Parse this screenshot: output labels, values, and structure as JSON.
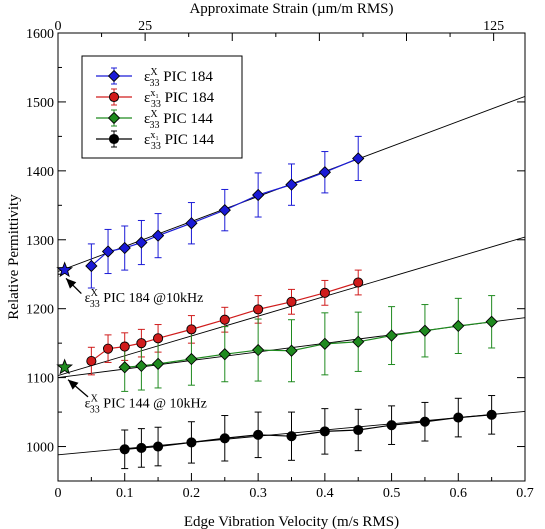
{
  "chart_data": {
    "type": "scatter",
    "xlabel": "Edge Vibration Velocity (m/s RMS)",
    "ylabel": "Relative Permittivity",
    "top_xlabel": "Approximate Strain (µm/m RMS)",
    "xlim": [
      0,
      0.7
    ],
    "ylim": [
      950,
      1600
    ],
    "top_xlim": [
      0,
      134
    ],
    "x_ticks": [
      0,
      0.1,
      0.2,
      0.3,
      0.4,
      0.5,
      0.6,
      0.7
    ],
    "x_tick_labels": [
      "0",
      "0.1",
      "0.2",
      "0.3",
      "0.4",
      "0.5",
      "0.6",
      "0.7"
    ],
    "y_ticks": [
      1000,
      1100,
      1200,
      1300,
      1400,
      1500,
      1600
    ],
    "y_tick_labels": [
      "1000",
      "1100",
      "1200",
      "1300",
      "1400",
      "1500",
      "1600"
    ],
    "top_ticks": [
      0,
      25,
      125
    ],
    "top_tick_labels": [
      "0",
      "25",
      "125"
    ],
    "grid": false,
    "legend_position": "top-left",
    "series": [
      {
        "name_base": "ε",
        "name_sub": "33",
        "name_sup": "X",
        "name_suffix": " PIC 184",
        "color": "#1a1ad6",
        "marker": "diamond",
        "x": [
          0.05,
          0.075,
          0.1,
          0.125,
          0.15,
          0.2,
          0.25,
          0.3,
          0.35,
          0.4,
          0.45
        ],
        "y": [
          1262,
          1283,
          1288,
          1296,
          1306,
          1324,
          1343,
          1365,
          1380,
          1398,
          1418
        ],
        "err": [
          32,
          32,
          32,
          32,
          32,
          30,
          30,
          32,
          30,
          30,
          32
        ],
        "fit": [
          [
            0,
            1254
          ],
          [
            0.7,
            1508
          ]
        ]
      },
      {
        "name_base": "ε",
        "name_sub": "33",
        "name_sup": "x₁",
        "name_suffix": " PIC 184",
        "color": "#d01c1c",
        "marker": "circle",
        "x": [
          0.05,
          0.075,
          0.1,
          0.125,
          0.15,
          0.2,
          0.25,
          0.3,
          0.35,
          0.4,
          0.45
        ],
        "y": [
          1124,
          1142,
          1145,
          1150,
          1157,
          1170,
          1184,
          1199,
          1210,
          1223,
          1238
        ],
        "err": [
          20,
          20,
          20,
          20,
          20,
          20,
          18,
          20,
          18,
          18,
          18
        ],
        "fit": [
          [
            0,
            1103
          ],
          [
            0.7,
            1304
          ]
        ]
      },
      {
        "name_base": "ε",
        "name_sub": "33",
        "name_sup": "X",
        "name_suffix": " PIC 144",
        "color": "#1f8a1f",
        "marker": "diamond",
        "x": [
          0.1,
          0.125,
          0.15,
          0.2,
          0.25,
          0.3,
          0.35,
          0.4,
          0.45,
          0.5,
          0.55,
          0.6,
          0.65
        ],
        "y": [
          1115,
          1117,
          1120,
          1127,
          1134,
          1140,
          1139,
          1149,
          1152,
          1161,
          1168,
          1175,
          1181
        ],
        "err": [
          35,
          35,
          35,
          38,
          40,
          45,
          45,
          45,
          43,
          42,
          38,
          40,
          38
        ],
        "fit": [
          [
            0,
            1100
          ],
          [
            0.7,
            1187
          ]
        ]
      },
      {
        "name_base": "ε",
        "name_sub": "33",
        "name_sup": "x₁",
        "name_suffix": " PIC 144",
        "color": "#000000",
        "marker": "circle",
        "x": [
          0.1,
          0.125,
          0.15,
          0.2,
          0.25,
          0.3,
          0.35,
          0.4,
          0.45,
          0.5,
          0.55,
          0.6,
          0.65
        ],
        "y": [
          996,
          998,
          1000,
          1006,
          1012,
          1017,
          1015,
          1022,
          1024,
          1031,
          1036,
          1042,
          1046
        ],
        "err": [
          28,
          28,
          28,
          30,
          33,
          33,
          35,
          33,
          30,
          28,
          28,
          28,
          28
        ],
        "fit": [
          [
            0,
            988
          ],
          [
            0.7,
            1051
          ]
        ]
      }
    ],
    "stars": [
      {
        "x": 0.01,
        "y": 1256,
        "color": "#1a1ad6"
      },
      {
        "x": 0.01,
        "y": 1115,
        "color": "#1f8a1f"
      }
    ],
    "annotations": [
      {
        "base": "ε",
        "sub": "33",
        "sup": "X",
        "text": " PIC 184 @10kHz",
        "text_x": 0.04,
        "text_y": 1210,
        "arrow_from": [
          0.035,
          1222
        ],
        "arrow_to": [
          0.012,
          1244
        ]
      },
      {
        "base": "ε",
        "sub": "33",
        "sup": "X",
        "text": " PIC 144 @ 10kHz",
        "text_x": 0.04,
        "text_y": 1057,
        "arrow_from": [
          0.045,
          1072
        ],
        "arrow_to": [
          0.015,
          1097
        ]
      }
    ]
  }
}
